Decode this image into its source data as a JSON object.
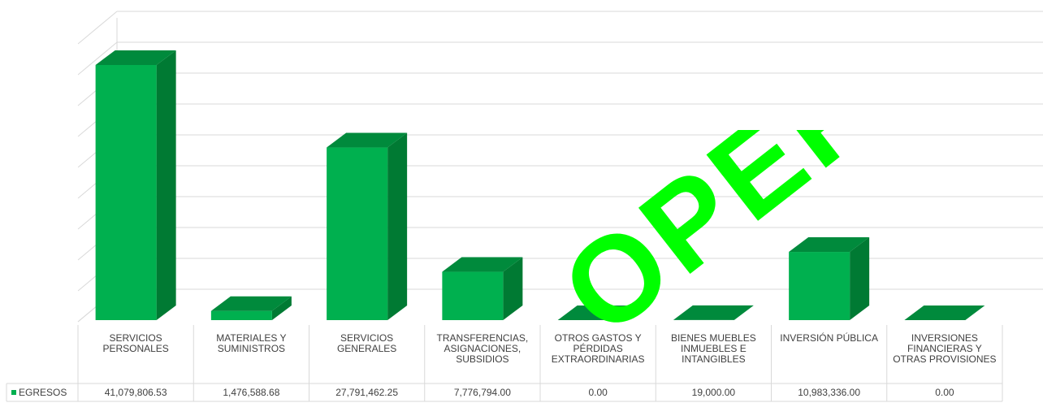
{
  "chart_data": {
    "type": "bar",
    "style": "3d-column",
    "categories": [
      "SERVICIOS PERSONALES",
      "MATERIALES Y SUMINISTROS",
      "SERVICIOS GENERALES",
      "TRANSFERENCIAS, ASIGNACIONES, SUBSIDIOS",
      "OTROS GASTOS Y PÉRDIDAS EXTRAORDINARIAS",
      "BIENES MUEBLES INMUEBLES E INTANGIBLES",
      "INVERSIÓN PÚBLICA",
      "INVERSIONES FINANCIERAS Y OTRAS PROVISIONES"
    ],
    "series": [
      {
        "name": "EGRESOS",
        "values": [
          41079806.53,
          1476588.68,
          27791462.25,
          7776794.0,
          0.0,
          19000.0,
          10983336.0,
          0.0
        ],
        "labels": [
          "41,079,806.53",
          "1,476,588.68",
          "27,791,462.25",
          "7,776,794.00",
          "0.00",
          "19,000.00",
          "10,983,336.00",
          "0.00"
        ]
      }
    ],
    "ylim": [
      0,
      45000000
    ],
    "grid": true,
    "data_table": true,
    "colors": {
      "front": "#00B04F",
      "side": "#007A33",
      "top": "#008A3C",
      "grid": "#D9D9D9"
    }
  },
  "watermark": {
    "text": "OPEFIO",
    "color": "#00FF00"
  }
}
